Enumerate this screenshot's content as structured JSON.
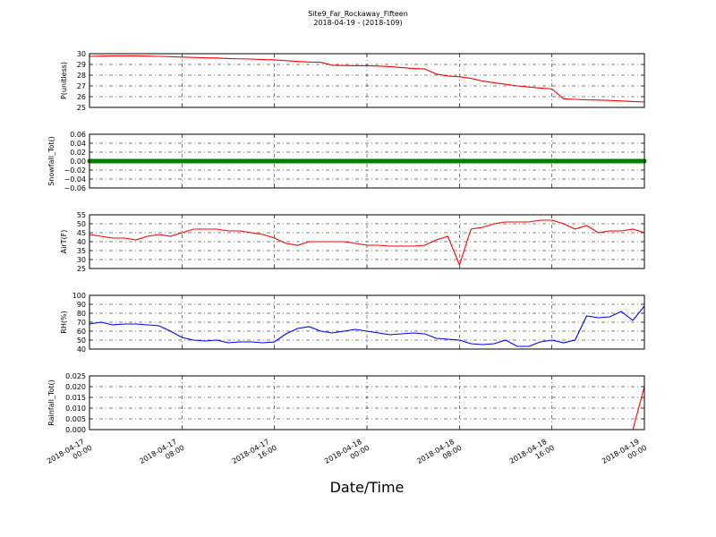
{
  "title": "Site9_Far_Rockaway_Fifteen",
  "subtitle": "2018-04-19 - (2018-109)",
  "xlabel": "Date/Time",
  "x": [
    "2018-04-17 00:00",
    "2018-04-17 01:00",
    "2018-04-17 02:00",
    "2018-04-17 03:00",
    "2018-04-17 04:00",
    "2018-04-17 05:00",
    "2018-04-17 06:00",
    "2018-04-17 07:00",
    "2018-04-17 08:00",
    "2018-04-17 09:00",
    "2018-04-17 10:00",
    "2018-04-17 11:00",
    "2018-04-17 12:00",
    "2018-04-17 13:00",
    "2018-04-17 14:00",
    "2018-04-17 15:00",
    "2018-04-17 16:00",
    "2018-04-17 17:00",
    "2018-04-17 18:00",
    "2018-04-17 19:00",
    "2018-04-17 20:00",
    "2018-04-17 21:00",
    "2018-04-17 22:00",
    "2018-04-17 23:00",
    "2018-04-18 00:00",
    "2018-04-18 01:00",
    "2018-04-18 02:00",
    "2018-04-18 03:00",
    "2018-04-18 04:00",
    "2018-04-18 05:00",
    "2018-04-18 06:00",
    "2018-04-18 07:00",
    "2018-04-18 08:00",
    "2018-04-18 09:00",
    "2018-04-18 10:00",
    "2018-04-18 11:00",
    "2018-04-18 12:00",
    "2018-04-18 13:00",
    "2018-04-18 14:00",
    "2018-04-18 15:00",
    "2018-04-18 16:00",
    "2018-04-18 17:00",
    "2018-04-18 18:00",
    "2018-04-18 19:00",
    "2018-04-18 20:00",
    "2018-04-18 21:00",
    "2018-04-18 22:00",
    "2018-04-18 23:00",
    "2018-04-19 00:00"
  ],
  "xlim": [
    "2018-04-17 00:00",
    "2018-04-19 00:00"
  ],
  "xticks": [
    {
      "value": "2018-04-17 00:00",
      "label": [
        "2018-04-17",
        "00:00"
      ]
    },
    {
      "value": "2018-04-17 08:00",
      "label": [
        "2018-04-17",
        "08:00"
      ]
    },
    {
      "value": "2018-04-17 16:00",
      "label": [
        "2018-04-17",
        "16:00"
      ]
    },
    {
      "value": "2018-04-18 00:00",
      "label": [
        "2018-04-18",
        "00:00"
      ]
    },
    {
      "value": "2018-04-18 08:00",
      "label": [
        "2018-04-18",
        "08:00"
      ]
    },
    {
      "value": "2018-04-18 16:00",
      "label": [
        "2018-04-18",
        "16:00"
      ]
    },
    {
      "value": "2018-04-19 00:00",
      "label": [
        "2018-04-19",
        "00:00"
      ]
    }
  ],
  "chart_data": [
    {
      "type": "line",
      "ylabel": "P(unitless)",
      "ylim": [
        25,
        30
      ],
      "yticks": [
        25,
        26,
        27,
        28,
        29,
        30
      ],
      "grid": true,
      "series": [
        {
          "color": "#ff0000",
          "values": [
            29.75,
            29.78,
            29.8,
            29.8,
            29.8,
            29.78,
            29.75,
            29.72,
            29.68,
            29.65,
            29.62,
            29.6,
            29.55,
            29.52,
            29.5,
            29.45,
            29.42,
            29.35,
            29.28,
            29.22,
            29.2,
            28.92,
            28.9,
            28.88,
            28.88,
            28.85,
            28.8,
            28.7,
            28.62,
            28.58,
            28.1,
            27.92,
            27.85,
            27.7,
            27.45,
            27.3,
            27.15,
            27.0,
            26.9,
            26.8,
            26.72,
            25.8,
            25.75,
            25.7,
            25.68,
            25.65,
            25.6,
            25.55,
            25.5
          ]
        }
      ]
    },
    {
      "type": "line",
      "ylabel": "Snowfall_Tot()",
      "ylim": [
        -0.06,
        0.06
      ],
      "yticks": [
        {
          "value": -0.06,
          "label": "−0.06"
        },
        {
          "value": -0.04,
          "label": "−0.04"
        },
        {
          "value": -0.02,
          "label": "−0.02"
        },
        {
          "value": 0,
          "label": "0.00"
        },
        {
          "value": 0.02,
          "label": "0.02"
        },
        {
          "value": 0.04,
          "label": "0.04"
        },
        {
          "value": 0.06,
          "label": "0.06"
        }
      ],
      "grid": true,
      "series": [
        {
          "color": "#008000",
          "marker": "o",
          "values": [
            0,
            0,
            0,
            0,
            0,
            0,
            0,
            0,
            0,
            0,
            0,
            0,
            0,
            0,
            0,
            0,
            0,
            0,
            0,
            0,
            0,
            0,
            0,
            0,
            0,
            0,
            0,
            0,
            0,
            0,
            0,
            0,
            0,
            0,
            0,
            0,
            0,
            0,
            0,
            0,
            0,
            0,
            0,
            0,
            0,
            0,
            0,
            0,
            0
          ]
        }
      ]
    },
    {
      "type": "line",
      "ylabel": "AirT(F)",
      "ylim": [
        25,
        55
      ],
      "yticks": [
        25,
        30,
        35,
        40,
        45,
        50,
        55
      ],
      "grid": true,
      "series": [
        {
          "color": "#ff0000",
          "values": [
            44,
            43,
            42,
            42,
            41,
            43,
            44,
            43,
            45,
            47,
            47,
            47,
            46,
            46,
            45,
            44,
            42,
            39,
            38,
            40,
            40,
            40,
            40,
            39,
            38,
            38,
            37.5,
            37.5,
            37.5,
            38,
            41,
            43,
            27,
            47,
            48,
            50,
            51,
            51,
            51,
            52,
            52,
            50,
            47,
            49,
            45,
            46,
            46,
            47,
            45
          ]
        }
      ]
    },
    {
      "type": "line",
      "ylabel": "RH(%)",
      "ylim": [
        40,
        100
      ],
      "yticks": [
        40,
        50,
        60,
        70,
        80,
        90,
        100
      ],
      "grid": true,
      "series": [
        {
          "color": "#0000ff",
          "values": [
            68,
            70,
            67,
            68,
            68,
            67,
            66,
            60,
            53,
            50,
            49,
            50,
            47,
            48,
            48,
            47,
            48,
            57,
            63,
            65,
            60,
            58,
            60,
            62,
            60,
            58,
            56,
            57,
            58,
            57,
            52,
            51,
            50,
            46,
            45,
            46,
            50,
            43,
            43,
            48,
            50,
            47,
            50,
            77,
            75,
            76,
            82,
            72,
            88
          ]
        }
      ]
    },
    {
      "type": "line",
      "ylabel": "Rainfall_Tot()",
      "ylim": [
        0,
        0.025
      ],
      "yticks": [
        {
          "value": 0,
          "label": "0.000"
        },
        {
          "value": 0.005,
          "label": "0.005"
        },
        {
          "value": 0.01,
          "label": "0.010"
        },
        {
          "value": 0.015,
          "label": "0.015"
        },
        {
          "value": 0.02,
          "label": "0.020"
        },
        {
          "value": 0.025,
          "label": "0.025"
        }
      ],
      "grid": true,
      "series": [
        {
          "color": "#ff0000",
          "values": [
            0,
            0,
            0,
            0,
            0,
            0,
            0,
            0,
            0,
            0,
            0,
            0,
            0,
            0,
            0,
            0,
            0,
            0,
            0,
            0,
            0,
            0,
            0,
            0,
            0,
            0,
            0,
            0,
            0,
            0,
            0,
            0,
            0,
            0,
            0,
            0,
            0,
            0,
            0,
            0,
            0,
            0,
            0,
            0,
            0,
            0,
            0,
            0,
            0.02
          ]
        }
      ]
    }
  ]
}
